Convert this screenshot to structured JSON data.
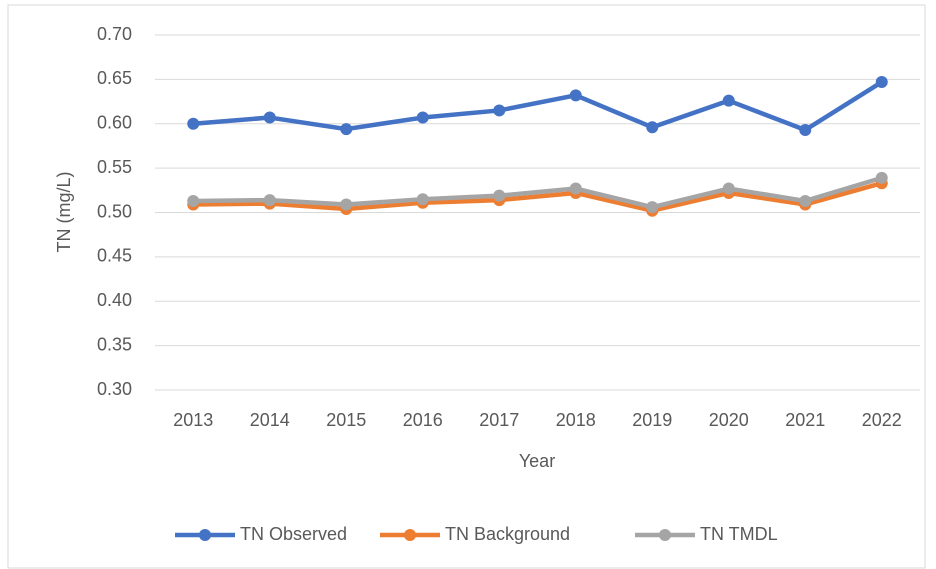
{
  "chart_data": {
    "type": "line",
    "x_label": "Year",
    "y_label": "TN (mg/L)",
    "categories": [
      "2013",
      "2014",
      "2015",
      "2016",
      "2017",
      "2018",
      "2019",
      "2020",
      "2021",
      "2022"
    ],
    "series": [
      {
        "name": "TN Observed",
        "color": "#4472c4",
        "values": [
          0.6,
          0.607,
          0.594,
          0.607,
          0.615,
          0.632,
          0.596,
          0.626,
          0.593,
          0.647
        ]
      },
      {
        "name": "TN Background",
        "color": "#ed7d31",
        "values": [
          0.509,
          0.51,
          0.504,
          0.511,
          0.514,
          0.522,
          0.502,
          0.522,
          0.509,
          0.533
        ]
      },
      {
        "name": "TN TMDL",
        "color": "#a5a5a5",
        "values": [
          0.513,
          0.514,
          0.509,
          0.515,
          0.519,
          0.527,
          0.506,
          0.527,
          0.513,
          0.539
        ]
      }
    ],
    "ylim": [
      0.3,
      0.7
    ],
    "yticks": [
      {
        "value": 0.3,
        "label": "0.30"
      },
      {
        "value": 0.35,
        "label": "0.35"
      },
      {
        "value": 0.4,
        "label": "0.40"
      },
      {
        "value": 0.45,
        "label": "0.45"
      },
      {
        "value": 0.5,
        "label": "0.50"
      },
      {
        "value": 0.55,
        "label": "0.55"
      },
      {
        "value": 0.6,
        "label": "0.60"
      },
      {
        "value": 0.65,
        "label": "0.65"
      },
      {
        "value": 0.7,
        "label": "0.70"
      }
    ],
    "grid": true,
    "legend": "bottom"
  }
}
